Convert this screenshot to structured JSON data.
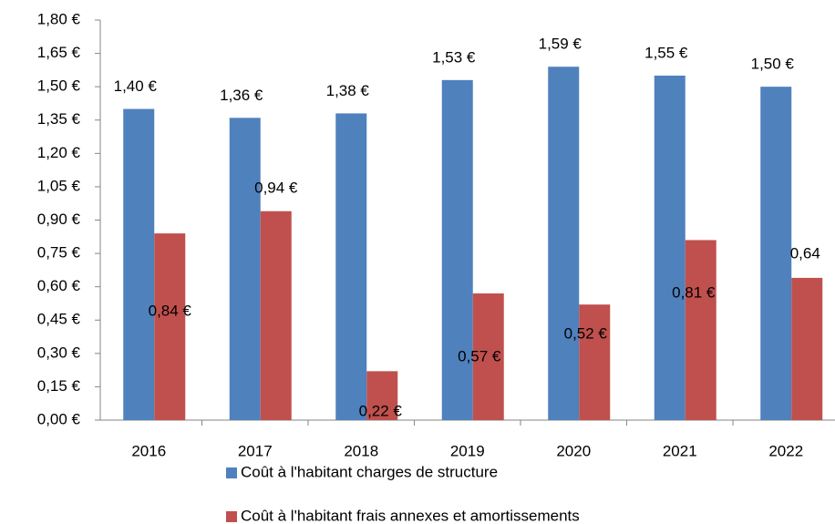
{
  "chart_data": {
    "type": "bar",
    "categories": [
      "2016",
      "2017",
      "2018",
      "2019",
      "2020",
      "2021",
      "2022"
    ],
    "series": [
      {
        "name": "Coût à l'habitant charges de structure",
        "color": "#4f81bd",
        "values": [
          1.4,
          1.36,
          1.38,
          1.53,
          1.59,
          1.55,
          1.5
        ],
        "value_labels": [
          "1,40 €",
          "1,36 €",
          "1,38 €",
          "1,53 €",
          "1,59 €",
          "1,55 €",
          "1,50 €"
        ]
      },
      {
        "name": "Coût à l'habitant frais annexes et amortissements",
        "color": "#c0504d",
        "values": [
          0.84,
          0.94,
          0.22,
          0.57,
          0.52,
          0.81,
          0.64
        ],
        "value_labels": [
          "0,84 €",
          "0,94 €",
          "0,22 €",
          "0,57 €",
          "0,52 €",
          "0,81 €",
          "0,64"
        ]
      }
    ],
    "ylim": [
      0,
      1.8
    ],
    "yticks": [
      {
        "value": 0,
        "label": "0,00 €"
      },
      {
        "value": 0.15,
        "label": "0,15 €"
      },
      {
        "value": 0.3,
        "label": "0,30 €"
      },
      {
        "value": 0.45,
        "label": "0,45 €"
      },
      {
        "value": 0.6,
        "label": "0,60 €"
      },
      {
        "value": 0.75,
        "label": "0,75 €"
      },
      {
        "value": 0.9,
        "label": "0,90 €"
      },
      {
        "value": 1.05,
        "label": "1,05 €"
      },
      {
        "value": 1.2,
        "label": "1,20 €"
      },
      {
        "value": 1.35,
        "label": "1,35 €"
      },
      {
        "value": 1.5,
        "label": "1,50 €"
      },
      {
        "value": 1.65,
        "label": "1,65 €"
      },
      {
        "value": 1.8,
        "label": "1,80 €"
      }
    ],
    "grid": false,
    "legend": "bottom"
  }
}
